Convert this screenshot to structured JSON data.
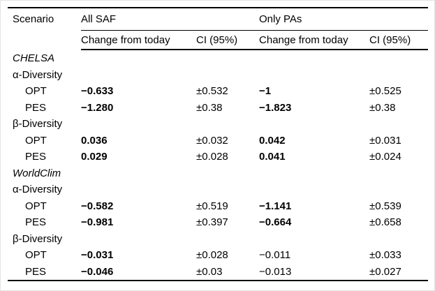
{
  "colors": {
    "text": "#000000",
    "background": "#ffffff",
    "rule": "#000000"
  },
  "table": {
    "header": {
      "scenario": "Scenario",
      "group1": "All SAF",
      "group2": "Only PAs",
      "subcols": [
        "Change from today",
        "CI (95%)",
        "Change from today",
        "CI (95%)"
      ]
    },
    "rows": [
      {
        "kind": "section",
        "label": "CHELSA"
      },
      {
        "kind": "group",
        "label": "α-Diversity"
      },
      {
        "kind": "data",
        "label": "OPT",
        "cells": [
          {
            "text": "−0.633",
            "bold": true
          },
          {
            "text": "±0.532",
            "bold": false
          },
          {
            "text": "−1",
            "bold": true
          },
          {
            "text": "±0.525",
            "bold": false
          }
        ]
      },
      {
        "kind": "data",
        "label": "PES",
        "cells": [
          {
            "text": "−1.280",
            "bold": true
          },
          {
            "text": "±0.38",
            "bold": false
          },
          {
            "text": "−1.823",
            "bold": true
          },
          {
            "text": "±0.38",
            "bold": false
          }
        ]
      },
      {
        "kind": "group",
        "label": "β-Diversity"
      },
      {
        "kind": "data",
        "label": "OPT",
        "cells": [
          {
            "text": "0.036",
            "bold": true
          },
          {
            "text": "±0.032",
            "bold": false
          },
          {
            "text": "0.042",
            "bold": true
          },
          {
            "text": "±0.031",
            "bold": false
          }
        ]
      },
      {
        "kind": "data",
        "label": "PES",
        "cells": [
          {
            "text": "0.029",
            "bold": true
          },
          {
            "text": "±0.028",
            "bold": false
          },
          {
            "text": "0.041",
            "bold": true
          },
          {
            "text": "±0.024",
            "bold": false
          }
        ]
      },
      {
        "kind": "section",
        "label": "WorldClim"
      },
      {
        "kind": "group",
        "label": "α-Diversity"
      },
      {
        "kind": "data",
        "label": "OPT",
        "cells": [
          {
            "text": "−0.582",
            "bold": true
          },
          {
            "text": "±0.519",
            "bold": false
          },
          {
            "text": "−1.141",
            "bold": true
          },
          {
            "text": "±0.539",
            "bold": false
          }
        ]
      },
      {
        "kind": "data",
        "label": "PES",
        "cells": [
          {
            "text": "−0.981",
            "bold": true
          },
          {
            "text": "±0.397",
            "bold": false
          },
          {
            "text": "−0.664",
            "bold": true
          },
          {
            "text": "±0.658",
            "bold": false
          }
        ]
      },
      {
        "kind": "group",
        "label": "β-Diversity"
      },
      {
        "kind": "data",
        "label": "OPT",
        "cells": [
          {
            "text": "−0.031",
            "bold": true
          },
          {
            "text": "±0.028",
            "bold": false
          },
          {
            "text": "−0.011",
            "bold": false
          },
          {
            "text": "±0.033",
            "bold": false
          }
        ]
      },
      {
        "kind": "data",
        "label": "PES",
        "cells": [
          {
            "text": "−0.046",
            "bold": true
          },
          {
            "text": "±0.03",
            "bold": false
          },
          {
            "text": "−0.013",
            "bold": false
          },
          {
            "text": "±0.027",
            "bold": false
          }
        ]
      }
    ]
  }
}
